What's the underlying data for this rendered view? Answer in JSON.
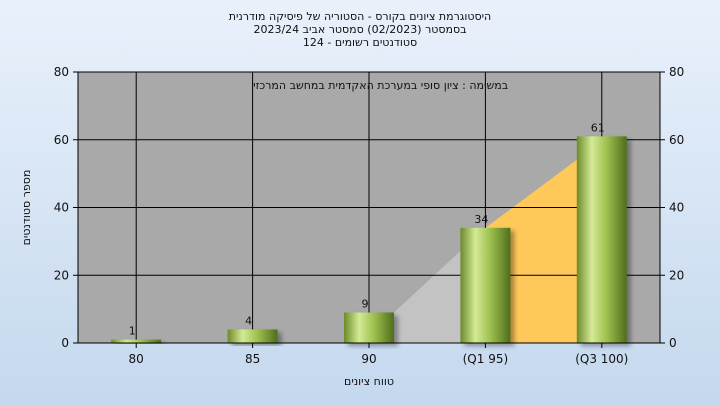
{
  "titles": {
    "line1": "היסטוגרמת ציונים בקורס - הסטוריה של פיסיקה מודרנית",
    "line2": "בסמסטר  (02/2023)  סמסטר אביב 2023/24",
    "line3": "סטודנטים רשומים - 124"
  },
  "chart_data": {
    "type": "bar",
    "subtitle": "במשימה : ציון סופי במערכת האקדמית במחשב המרכזי",
    "xlabel": "טווח ציונים",
    "ylabel": "מספר סטודנטים",
    "categories": [
      "80",
      "85",
      "90",
      "(Q1 95)",
      "(Q3 100)"
    ],
    "values": [
      1,
      4,
      9,
      34,
      61
    ],
    "ylim": [
      0,
      80
    ],
    "yticks": [
      0,
      20,
      40,
      60,
      80
    ],
    "grid": true,
    "colors": {
      "plot_bg": "#a9a9a9",
      "bar_light": "#c7e08a",
      "bar_dark": "#4f6d1c",
      "quartile_area": "#ffc85a",
      "gray_area": "#c3c3c3"
    }
  }
}
